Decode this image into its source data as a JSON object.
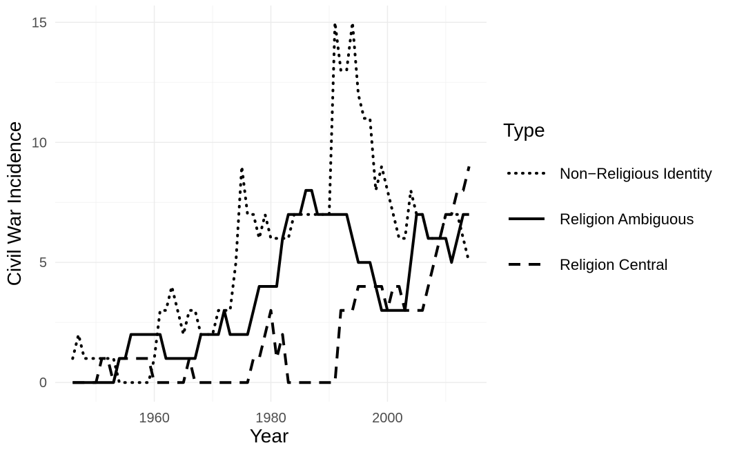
{
  "chart_data": {
    "type": "line",
    "xlabel": "Year",
    "ylabel": "Civil War Incidence",
    "xlim": [
      1943,
      2017
    ],
    "ylim": [
      -0.8,
      15.7
    ],
    "xticks": [
      1960,
      1980,
      2000
    ],
    "yticks": [
      0,
      5,
      10,
      15
    ],
    "grid": true,
    "legend": {
      "title": "Type",
      "position": "right"
    },
    "series": [
      {
        "name": "Non−Religious Identity",
        "style": "dotted",
        "x": [
          1946,
          1947,
          1948,
          1949,
          1950,
          1951,
          1952,
          1953,
          1954,
          1955,
          1956,
          1957,
          1958,
          1959,
          1960,
          1961,
          1962,
          1963,
          1964,
          1965,
          1966,
          1967,
          1968,
          1969,
          1970,
          1971,
          1972,
          1973,
          1974,
          1975,
          1976,
          1977,
          1978,
          1979,
          1980,
          1981,
          1982,
          1983,
          1984,
          1985,
          1986,
          1987,
          1988,
          1989,
          1990,
          1991,
          1992,
          1993,
          1994,
          1995,
          1996,
          1997,
          1998,
          1999,
          2000,
          2001,
          2002,
          2003,
          2004,
          2005,
          2006,
          2007,
          2008,
          2009,
          2010,
          2011,
          2012,
          2013,
          2014
        ],
        "values": [
          1,
          2,
          1,
          1,
          1,
          1,
          1,
          1,
          0,
          0,
          0,
          0,
          0,
          0,
          1,
          3,
          3,
          4,
          3,
          2,
          3,
          3,
          2,
          2,
          2,
          3,
          3,
          3,
          5,
          9,
          7,
          7,
          6,
          7,
          6,
          6,
          6,
          6,
          7,
          7,
          7,
          7,
          7,
          7,
          7,
          15,
          13,
          13,
          15,
          12,
          11,
          11,
          8,
          9,
          8,
          7,
          6,
          6,
          8,
          7,
          7,
          6,
          6,
          6,
          7,
          7,
          7,
          6,
          5
        ]
      },
      {
        "name": "Religion Ambiguous",
        "style": "solid",
        "x": [
          1946,
          1947,
          1948,
          1949,
          1950,
          1951,
          1952,
          1953,
          1954,
          1955,
          1956,
          1957,
          1958,
          1959,
          1960,
          1961,
          1962,
          1963,
          1964,
          1965,
          1966,
          1967,
          1968,
          1969,
          1970,
          1971,
          1972,
          1973,
          1974,
          1975,
          1976,
          1977,
          1978,
          1979,
          1980,
          1981,
          1982,
          1983,
          1984,
          1985,
          1986,
          1987,
          1988,
          1989,
          1990,
          1991,
          1992,
          1993,
          1994,
          1995,
          1996,
          1997,
          1998,
          1999,
          2000,
          2001,
          2002,
          2003,
          2004,
          2005,
          2006,
          2007,
          2008,
          2009,
          2010,
          2011,
          2012,
          2013,
          2014
        ],
        "values": [
          0,
          0,
          0,
          0,
          0,
          0,
          0,
          0,
          1,
          1,
          2,
          2,
          2,
          2,
          2,
          2,
          1,
          1,
          1,
          1,
          1,
          1,
          2,
          2,
          2,
          2,
          3,
          2,
          2,
          2,
          2,
          3,
          4,
          4,
          4,
          4,
          6,
          7,
          7,
          7,
          8,
          8,
          7,
          7,
          7,
          7,
          7,
          7,
          6,
          5,
          5,
          5,
          4,
          3,
          3,
          3,
          3,
          3,
          5,
          7,
          7,
          6,
          6,
          6,
          6,
          5,
          6,
          7,
          7
        ]
      },
      {
        "name": "Religion Central",
        "style": "dashed",
        "x": [
          1946,
          1947,
          1948,
          1949,
          1950,
          1951,
          1952,
          1953,
          1954,
          1955,
          1956,
          1957,
          1958,
          1959,
          1960,
          1961,
          1962,
          1963,
          1964,
          1965,
          1966,
          1967,
          1968,
          1969,
          1970,
          1971,
          1972,
          1973,
          1974,
          1975,
          1976,
          1977,
          1978,
          1979,
          1980,
          1981,
          1982,
          1983,
          1984,
          1985,
          1986,
          1987,
          1988,
          1989,
          1990,
          1991,
          1992,
          1993,
          1994,
          1995,
          1996,
          1997,
          1998,
          1999,
          2000,
          2001,
          2002,
          2003,
          2004,
          2005,
          2006,
          2007,
          2008,
          2009,
          2010,
          2011,
          2012,
          2013,
          2014
        ],
        "values": [
          0,
          0,
          0,
          0,
          0,
          1,
          1,
          0,
          1,
          1,
          1,
          1,
          1,
          1,
          0,
          0,
          0,
          0,
          0,
          0,
          1,
          0,
          0,
          0,
          0,
          0,
          0,
          0,
          0,
          0,
          0,
          1,
          1,
          2,
          3,
          1,
          2,
          0,
          0,
          0,
          0,
          0,
          0,
          0,
          0,
          0,
          3,
          3,
          3,
          4,
          4,
          4,
          4,
          4,
          3,
          4,
          4,
          3,
          3,
          3,
          3,
          4,
          5,
          6,
          7,
          7,
          8,
          8,
          9
        ]
      }
    ]
  }
}
